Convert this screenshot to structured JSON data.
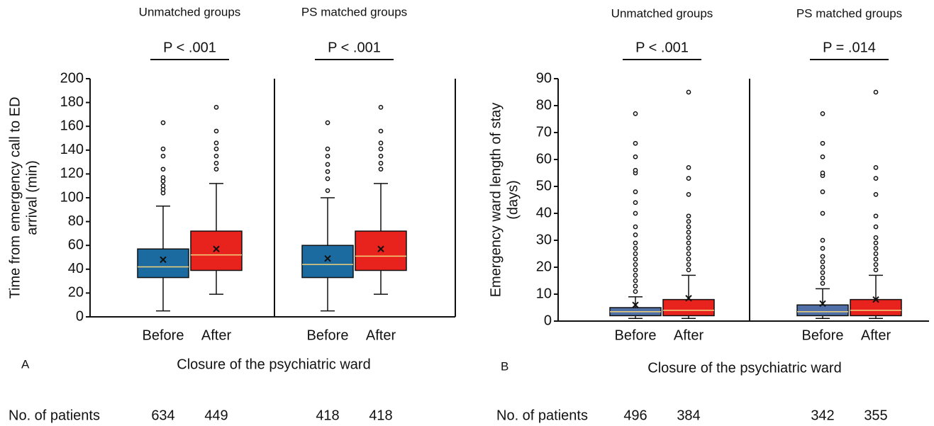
{
  "chart_data": [
    {
      "type": "box",
      "panel": "A",
      "ylabel": [
        "Time from emergency call to ED",
        "arrival (min)"
      ],
      "ylim": [
        0,
        200
      ],
      "yticks": [
        0,
        20,
        40,
        60,
        80,
        100,
        120,
        140,
        160,
        180,
        200
      ],
      "xlabel": "Closure of the psychiatric ward",
      "count_label": "No. of patients",
      "categories": [
        "Before",
        "After"
      ],
      "groups": [
        {
          "name": "Unmatched groups",
          "p_value": "P < .001",
          "boxes": [
            {
              "color": "#1b6aa0",
              "whislo": 5,
              "q1": 33,
              "med": 42,
              "q3": 57,
              "whishi": 93,
              "mean": 48,
              "fliers": [
                104,
                107,
                110,
                114,
                117,
                124,
                135,
                141,
                163
              ],
              "n": 634
            },
            {
              "color": "#e8231e",
              "whislo": 19,
              "q1": 39,
              "med": 52,
              "q3": 72,
              "whishi": 112,
              "mean": 57,
              "fliers": [
                124,
                129,
                135,
                141,
                146,
                156,
                176
              ],
              "n": 449
            }
          ]
        },
        {
          "name": "PS matched groups",
          "p_value": "P < .001",
          "boxes": [
            {
              "color": "#1b6aa0",
              "whislo": 5,
              "q1": 33,
              "med": 44,
              "q3": 60,
              "whishi": 100,
              "mean": 49,
              "fliers": [
                106,
                116,
                122,
                128,
                135,
                141,
                163
              ],
              "n": 418
            },
            {
              "color": "#e8231e",
              "whislo": 19,
              "q1": 39,
              "med": 51,
              "q3": 72,
              "whishi": 112,
              "mean": 57,
              "fliers": [
                124,
                129,
                135,
                141,
                146,
                156,
                176
              ],
              "n": 418
            }
          ]
        }
      ]
    },
    {
      "type": "box",
      "panel": "B",
      "ylabel": [
        "Emergency ward length of stay",
        "(days)"
      ],
      "ylim": [
        0,
        90
      ],
      "yticks": [
        0,
        10,
        20,
        30,
        40,
        50,
        60,
        70,
        80,
        90
      ],
      "xlabel": "Closure of the psychiatric ward",
      "count_label": "No. of patients",
      "categories": [
        "Before",
        "After"
      ],
      "groups": [
        {
          "name": "Unmatched groups",
          "p_value": "P < .001",
          "boxes": [
            {
              "color": "#4f6fa6",
              "whislo": 1,
              "q1": 2,
              "med": 3.5,
              "q3": 5,
              "whishi": 9,
              "mean": 6,
              "fliers": [
                11,
                13,
                15,
                17,
                19,
                21,
                23,
                25,
                27,
                29,
                32,
                35,
                40,
                44,
                48,
                55,
                56,
                61,
                66,
                77
              ],
              "n": 496
            },
            {
              "color": "#e8231e",
              "whislo": 1,
              "q1": 2,
              "med": 4,
              "q3": 8,
              "whishi": 17,
              "mean": 8.5,
              "fliers": [
                19,
                21,
                23,
                25,
                27,
                29,
                31,
                33,
                35,
                37,
                39,
                47,
                53,
                57,
                85
              ],
              "n": 384
            }
          ]
        },
        {
          "name": "PS matched groups",
          "p_value": "P = .014",
          "boxes": [
            {
              "color": "#4f6fa6",
              "whislo": 1,
              "q1": 2,
              "med": 3.5,
              "q3": 6,
              "whishi": 12,
              "mean": 6.5,
              "fliers": [
                14,
                16,
                18,
                20,
                22,
                24,
                27,
                30,
                40,
                48,
                54,
                55,
                61,
                66,
                77
              ],
              "n": 342
            },
            {
              "color": "#e8231e",
              "whislo": 1,
              "q1": 2,
              "med": 4,
              "q3": 8,
              "whishi": 17,
              "mean": 8,
              "fliers": [
                19,
                21,
                23,
                25,
                27,
                29,
                31,
                35,
                39,
                47,
                53,
                57,
                85
              ],
              "n": 355
            }
          ]
        }
      ]
    }
  ]
}
